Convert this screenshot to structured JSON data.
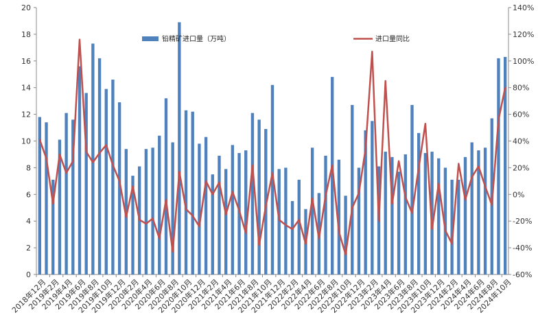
{
  "chart_data": {
    "type": "bar+line",
    "legend": {
      "bar_label": "铅精矿进口量（万吨）",
      "line_label": "进口量同比",
      "placement": "top-center"
    },
    "colors": {
      "bar": "#4f81bd",
      "line": "#c0504d",
      "axis": "#888888"
    },
    "y_left": {
      "min": 0,
      "max": 20,
      "ticks": [
        "0",
        "2",
        "4",
        "6",
        "8",
        "10",
        "12",
        "14",
        "16",
        "18",
        "20"
      ]
    },
    "y_right": {
      "min": -60,
      "max": 140,
      "ticks": [
        "-60%",
        "-40%",
        "-20%",
        "0%",
        "20%",
        "40%",
        "60%",
        "80%",
        "100%",
        "120%",
        "140%"
      ]
    },
    "x_tick_labels": [
      "2018年12月",
      "2019年2月",
      "2019年4月",
      "2019年6月",
      "2019年8月",
      "2019年10月",
      "2019年12月",
      "2020年2月",
      "2020年4月",
      "2020年6月",
      "2020年8月",
      "2020年10月",
      "2020年12月",
      "2021年2月",
      "2021年4月",
      "2021年6月",
      "2021年8月",
      "2021年10月",
      "2021年12月",
      "2022年2月",
      "2022年4月",
      "2022年6月",
      "2022年8月",
      "2022年10月",
      "2022年12月",
      "2023年2月",
      "2023年4月",
      "2023年6月",
      "2023年8月",
      "2023年10月",
      "2023年12月",
      "2024年2月",
      "2024年4月",
      "2024年6月",
      "2024年8月",
      "2024年10月"
    ],
    "bar_values": [
      11.8,
      11.4,
      7.1,
      10.1,
      12.1,
      11.6,
      15.6,
      13.6,
      17.3,
      16.2,
      13.9,
      14.6,
      12.9,
      9.4,
      7.4,
      8.1,
      9.4,
      9.5,
      10.4,
      13.2,
      9.9,
      18.9,
      12.3,
      12.2,
      9.8,
      10.3,
      7.5,
      8.9,
      7.9,
      9.7,
      9.1,
      9.3,
      12.1,
      11.6,
      10.9,
      14.2,
      7.9,
      8.0,
      5.5,
      7.1,
      4.9,
      9.5,
      6.1,
      8.9,
      14.8,
      8.6,
      5.9,
      12.7,
      8.0,
      10.8,
      11.5,
      8.1,
      9.2,
      8.8,
      7.7,
      9.0,
      12.7,
      10.6,
      9.1,
      9.2,
      8.7,
      8.0,
      7.1,
      7.1,
      8.8,
      9.9,
      9.3,
      9.5,
      11.7,
      16.2,
      16.3
    ],
    "line_values": [
      41,
      27,
      -7,
      30,
      16,
      25,
      116,
      32,
      24,
      31,
      37,
      22,
      10,
      -17,
      6,
      -19,
      -22,
      -18,
      -33,
      -4,
      -43,
      17,
      -11,
      -16,
      -24,
      10,
      0,
      9,
      -15,
      2,
      -12,
      -29,
      22,
      -38,
      -9,
      16,
      -19,
      -23,
      -26,
      -19,
      -37,
      -3,
      -33,
      -1,
      22,
      -28,
      -45,
      -10,
      1,
      34,
      107,
      -20,
      85,
      -7,
      25,
      -2,
      -14,
      20,
      53,
      -26,
      8,
      -27,
      -37,
      23,
      -4,
      13,
      21,
      6,
      -8,
      56,
      80
    ]
  }
}
